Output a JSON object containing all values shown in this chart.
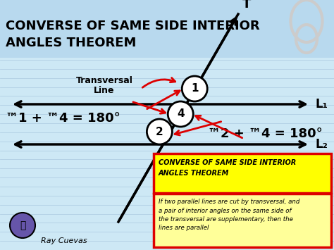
{
  "title_line1": "CONVERSE OF SAME SIDE INTERIOR",
  "title_line2": "ANGLES THEOREM",
  "title_fontsize": 13,
  "bg_color": "#cde8f5",
  "title_bg_color": "#b8d9ee",
  "line_color": "#000000",
  "red_color": "#dd0000",
  "yellow_box_color": "#ffff00",
  "desc_box_color": "#ffff99",
  "transversal_label": "T",
  "line1_label": "L₁",
  "line2_label": "L₂",
  "transversal_text_line1": "Transversal",
  "transversal_text_line2": "Line",
  "angle1_text": "™1 + ™4 = 180°",
  "angle2_text": "™2 + ™4 = 180°",
  "theorem_box_text": "CONVERSE OF SAME SIDE INTERIOR\nANGLES THEOREM",
  "description_text": "If two parallel lines are cut by transversal, and\na pair of interior angles on the same side of\nthe transversal are supplementary, then the\nlines are parallel",
  "author_text": "Ray Cuevas",
  "notebook_line_color": "#aac8df",
  "clip_color": "#cccccc"
}
